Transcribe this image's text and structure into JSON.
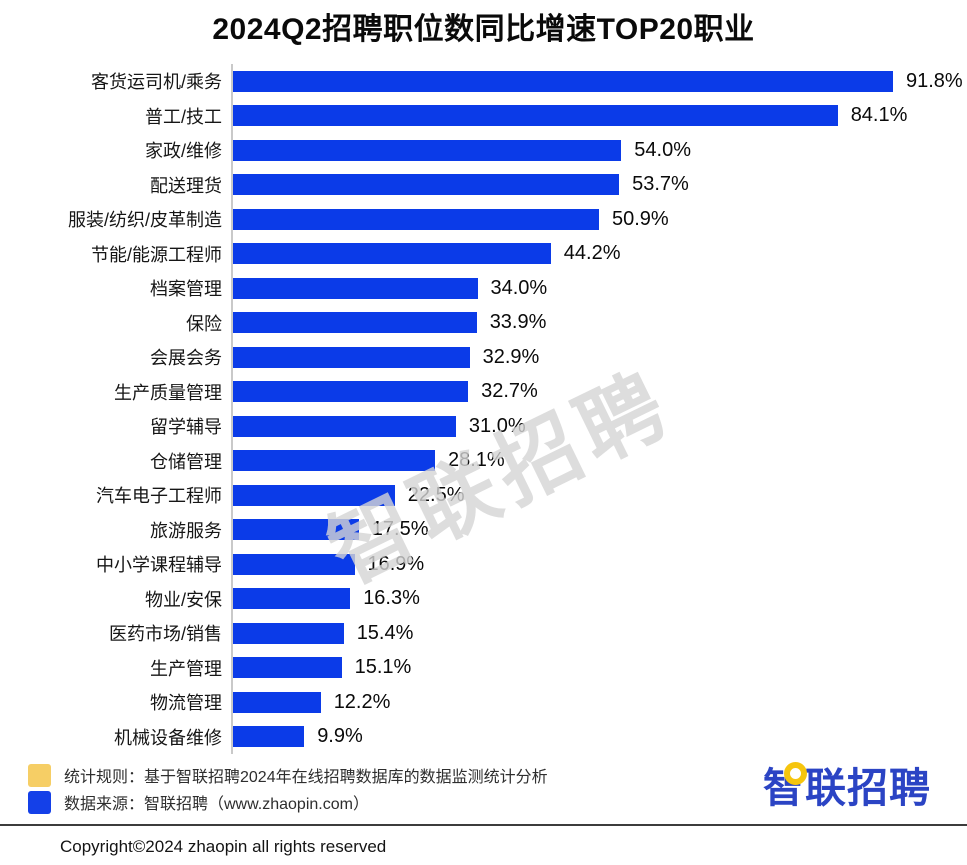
{
  "title": "2024Q2招聘职位数同比增速TOP20职业",
  "watermark": "智联招聘",
  "chart_data": {
    "type": "bar",
    "orientation": "horizontal",
    "title": "2024Q2招聘职位数同比增速TOP20职业",
    "xlabel": "",
    "ylabel": "",
    "xlim": [
      0,
      100
    ],
    "grid": false,
    "legend_position": "none",
    "categories": [
      "客货运司机/乘务",
      "普工/技工",
      "家政/维修",
      "配送理货",
      "服装/纺织/皮革制造",
      "节能/能源工程师",
      "档案管理",
      "保险",
      "会展会务",
      "生产质量管理",
      "留学辅导",
      "仓储管理",
      "汽车电子工程师",
      "旅游服务",
      "中小学课程辅导",
      "物业/安保",
      "医药市场/销售",
      "生产管理",
      "物流管理",
      "机械设备维修"
    ],
    "values": [
      91.8,
      84.1,
      54.0,
      53.7,
      50.9,
      44.2,
      34.0,
      33.9,
      32.9,
      32.7,
      31.0,
      28.1,
      22.5,
      17.5,
      16.9,
      16.3,
      15.4,
      15.1,
      12.2,
      9.9
    ],
    "value_labels": [
      "91.8%",
      "84.1%",
      "54.0%",
      "53.7%",
      "50.9%",
      "44.2%",
      "34.0%",
      "33.9%",
      "32.9%",
      "32.7%",
      "31.0%",
      "28.1%",
      "22.5%",
      "17.5%",
      "16.9%",
      "16.3%",
      "15.4%",
      "15.1%",
      "12.2%",
      "9.9%"
    ],
    "bar_color": "#0b3be8"
  },
  "footer": {
    "legend": [
      {
        "swatch_color": "#f6ce65",
        "text": "统计规则：基于智联招聘2024年在线招聘数据库的数据监测统计分析"
      },
      {
        "swatch_color": "#1440e8",
        "text": "数据来源：智联招聘（www.zhaopin.com）"
      }
    ],
    "copyright": "Copyright©2024 zhaopin all rights reserved"
  },
  "logo": {
    "text": "智联招聘",
    "color": "#2b44c4",
    "ring_color": "#f6c50e"
  }
}
